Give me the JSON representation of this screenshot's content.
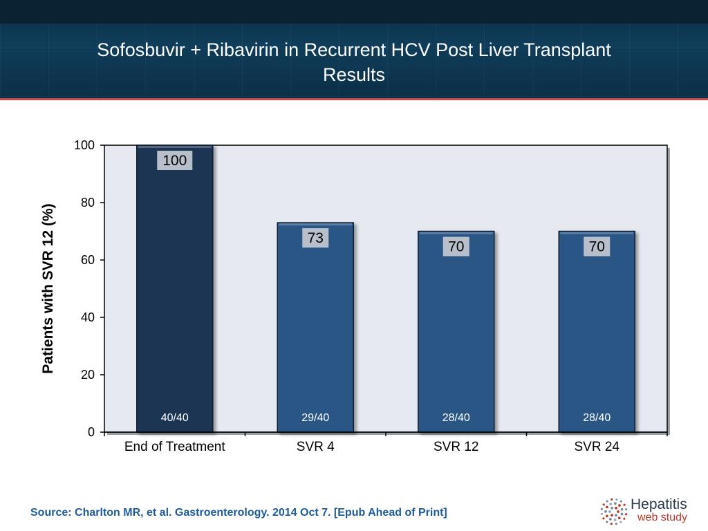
{
  "header": {
    "title_line1": "Sofosbuvir + Ribavirin in Recurrent HCV Post Liver Transplant",
    "title_line2": "Results"
  },
  "chart_data": {
    "type": "bar",
    "categories": [
      "End of Treatment",
      "SVR 4",
      "SVR 12",
      "SVR 24"
    ],
    "values": [
      100,
      73,
      70,
      70
    ],
    "value_labels": [
      "100",
      "73",
      "70",
      "70"
    ],
    "fraction_labels": [
      "40/40",
      "29/40",
      "28/40",
      "28/40"
    ],
    "ylabel": "Patients with SVR 12 (%)",
    "ylim": [
      0,
      100
    ],
    "yticks": [
      0,
      20,
      40,
      60,
      80,
      100
    ],
    "grid": false,
    "colors": {
      "bar_first": "#1c3552",
      "bar": "#2c5786",
      "plot_bg": "#e6e9f0",
      "label_box": "#b7bfca"
    }
  },
  "footer": {
    "source": "Source: Charlton MR, et al. Gastroenterology. 2014 Oct 7. [Epub Ahead of Print]"
  },
  "logo": {
    "line1": "Hepatitis",
    "line2": "web study",
    "icon": "dots-circle-icon"
  }
}
